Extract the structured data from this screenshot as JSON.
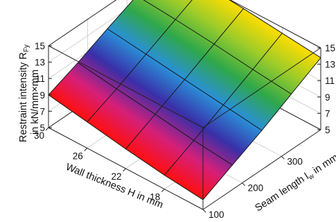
{
  "chart_data": {
    "type": "surface3d",
    "x_axis": {
      "label_main": "Wall thickness H in mm",
      "ticks": [
        "30",
        "26",
        "22",
        "18"
      ],
      "range": [
        14,
        30
      ]
    },
    "y_axis": {
      "label_main": "Seam length l",
      "label_sub": "w",
      "label_tail": " in mm",
      "ticks": [
        "100",
        "200",
        "300"
      ],
      "range": [
        100,
        400
      ]
    },
    "z_axis": {
      "label_line1_main": "Restraint intensity R",
      "label_line1_sub": "Fy",
      "label_line2": "in kN/mm×mm",
      "ticks": [
        "5",
        "7",
        "9",
        "11",
        "13",
        "15"
      ],
      "range": [
        5,
        15
      ]
    },
    "surface": {
      "H": [
        14,
        18,
        22,
        26,
        30
      ],
      "lw": [
        100,
        175,
        250,
        325,
        400
      ],
      "values": [
        [
          6.2,
          8.0,
          9.8,
          11.8,
          13.8
        ],
        [
          6.7,
          8.5,
          10.4,
          12.3,
          14.3
        ],
        [
          7.4,
          9.2,
          11.0,
          12.9,
          14.8
        ],
        [
          8.2,
          9.8,
          11.6,
          13.4,
          15.2
        ],
        [
          9.0,
          10.5,
          12.2,
          13.8,
          15.5
        ]
      ]
    },
    "colormap": [
      "#ff1010",
      "#d4207a",
      "#3a2fa8",
      "#2a90d8",
      "#2fa84a",
      "#9ccc2a",
      "#ffdd00"
    ],
    "grid": true
  }
}
